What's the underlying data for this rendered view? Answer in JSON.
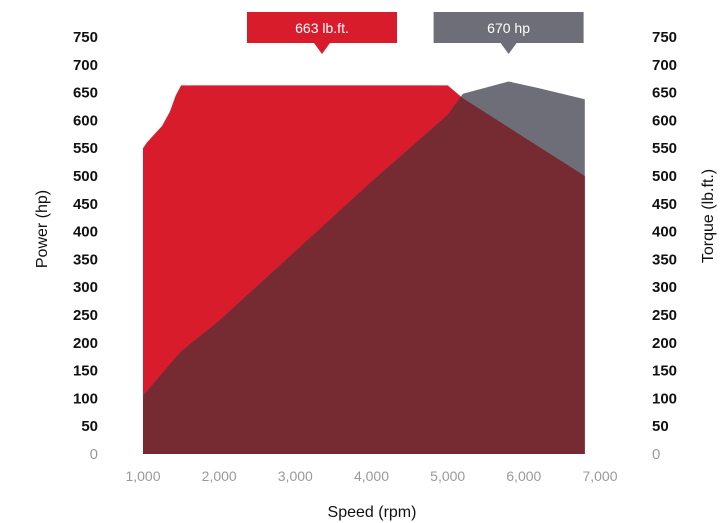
{
  "chart_data": {
    "type": "area",
    "xlabel": "Speed (rpm)",
    "ylabel_left": "Power (hp)",
    "ylabel_right": "Torque (lb.ft.)",
    "x_ticks": [
      "1,000",
      "2,000",
      "3,000",
      "4,000",
      "5,000",
      "6,000",
      "7,000"
    ],
    "y_ticks_left": [
      "0",
      "50",
      "100",
      "150",
      "200",
      "250",
      "300",
      "350",
      "400",
      "450",
      "500",
      "550",
      "600",
      "650",
      "700",
      "750"
    ],
    "y_ticks_right": [
      "0",
      "50",
      "100",
      "150",
      "200",
      "250",
      "300",
      "350",
      "400",
      "450",
      "500",
      "550",
      "600",
      "650",
      "700",
      "750"
    ],
    "xlim": [
      1000,
      7000
    ],
    "ylim": [
      0,
      750
    ],
    "colors": {
      "torque": "#d91c2b",
      "power": "#6e6e78",
      "overlap": "#762a31"
    },
    "series": [
      {
        "name": "Torque",
        "x": [
          1000,
          1050,
          1150,
          1250,
          1350,
          1430,
          1500,
          5000,
          5200,
          6000,
          6800
        ],
        "y": [
          550,
          560,
          575,
          590,
          615,
          645,
          663,
          663,
          640,
          570,
          500
        ]
      },
      {
        "name": "Power",
        "x": [
          1000,
          1500,
          2000,
          3000,
          4000,
          5000,
          5200,
          5800,
          6200,
          6800
        ],
        "y": [
          105,
          185,
          240,
          365,
          490,
          610,
          648,
          670,
          658,
          638
        ]
      }
    ],
    "annotations": [
      {
        "text": "663 lb.ft.",
        "x": 3350,
        "y": 663,
        "color": "#d91c2b"
      },
      {
        "text": "670 hp",
        "x": 5800,
        "y": 670,
        "color": "#6e6e78"
      }
    ]
  }
}
